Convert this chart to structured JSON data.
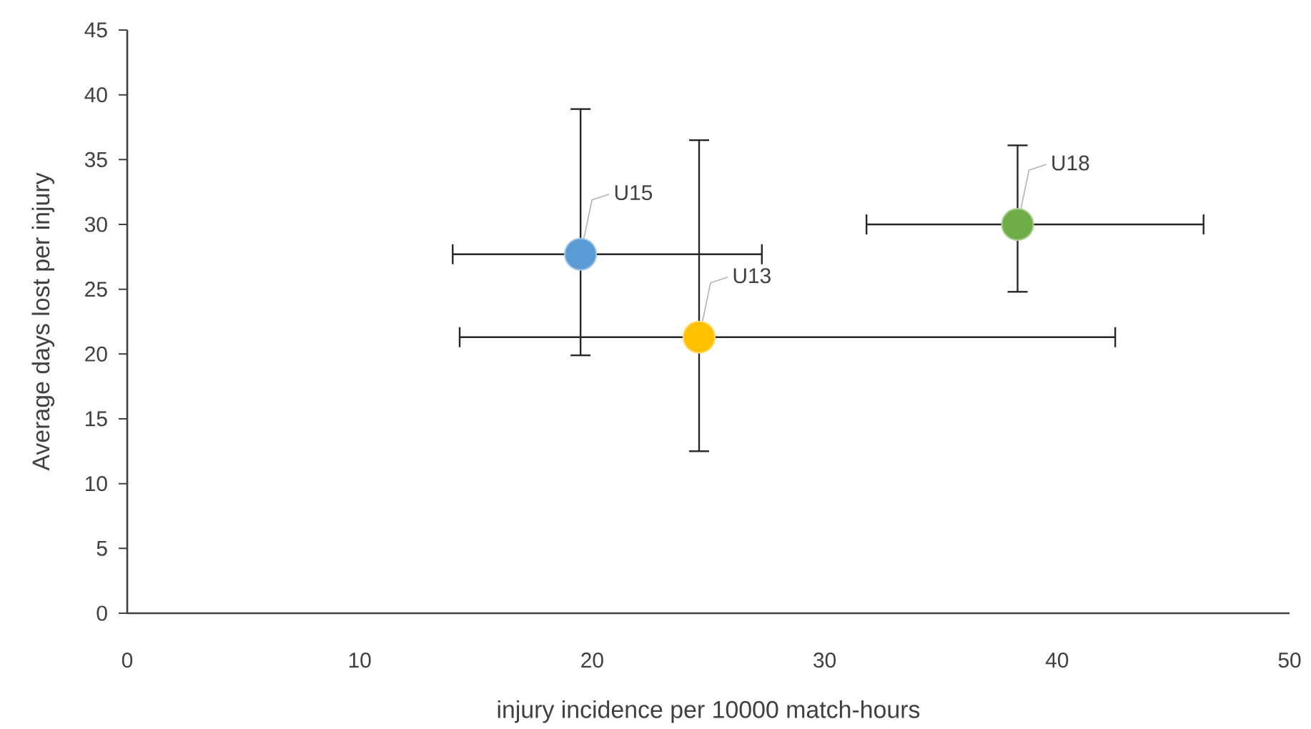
{
  "chart_data": {
    "type": "scatter",
    "xlabel": "injury incidence per 10000 match-hours",
    "ylabel": "Average days lost per injury",
    "xlim": [
      0,
      50
    ],
    "xticks": [
      0,
      10,
      20,
      30,
      40,
      50
    ],
    "ylim": [
      0,
      45
    ],
    "yticks": [
      0,
      5,
      10,
      15,
      20,
      25,
      30,
      35,
      40,
      45
    ],
    "grid": false,
    "legend": false,
    "marker": "circle",
    "series": [
      {
        "name": "U15",
        "color": "#5b9bd5",
        "x": [
          19.5
        ],
        "values": [
          27.7
        ],
        "errors": [
          [
            19.9,
            38.9
          ]
        ],
        "xerrors": [
          [
            14.0,
            27.3
          ]
        ]
      },
      {
        "name": "U13",
        "color": "#ffc000",
        "x": [
          24.6
        ],
        "values": [
          21.3
        ],
        "errors": [
          [
            12.5,
            36.5
          ]
        ],
        "xerrors": [
          [
            14.3,
            42.5
          ]
        ]
      },
      {
        "name": "U18",
        "color": "#70ad47",
        "x": [
          38.3
        ],
        "values": [
          30.0
        ],
        "errors": [
          [
            24.8,
            36.1
          ]
        ],
        "xerrors": [
          [
            31.8,
            46.3
          ]
        ]
      }
    ]
  }
}
